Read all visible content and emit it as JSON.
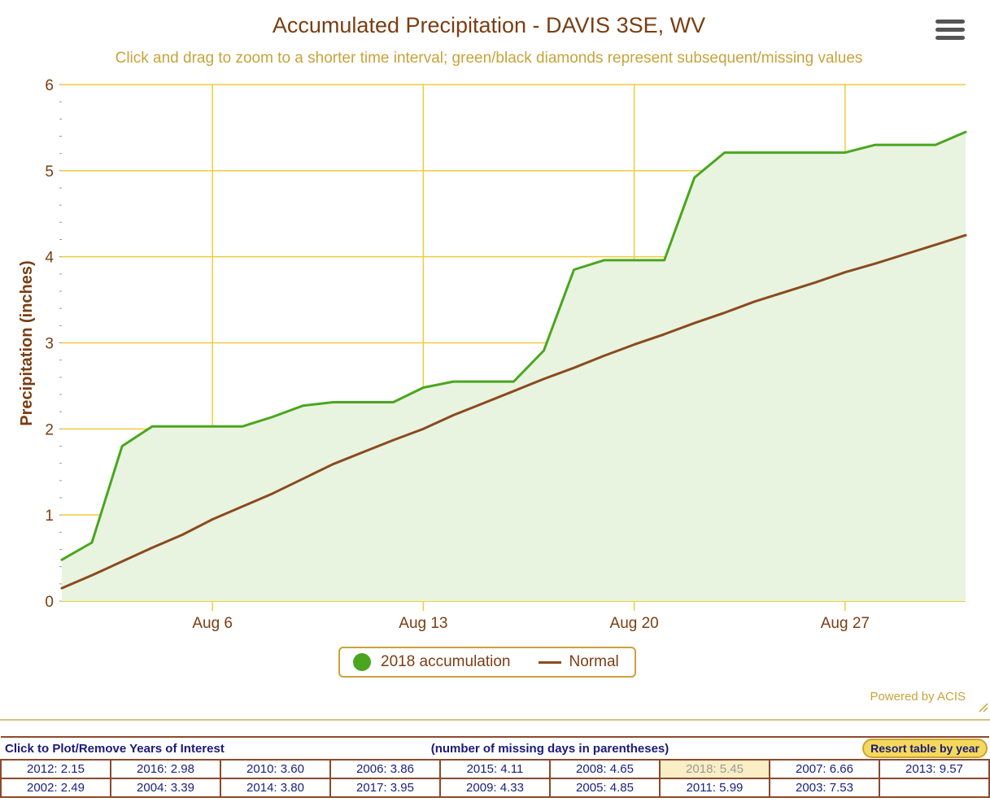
{
  "chart_data": {
    "type": "line",
    "title": "Accumulated Precipitation - DAVIS 3SE, WV",
    "subtitle": "Click and drag to zoom to a shorter time interval; green/black diamonds represent subsequent/missing values",
    "ylabel": "Precipitation (inches)",
    "ylim": [
      0,
      6
    ],
    "yticks": [
      "0",
      "1",
      "2",
      "3",
      "4",
      "5",
      "6"
    ],
    "xlim": [
      "2018-08-01",
      "2018-08-31"
    ],
    "xticks": [
      {
        "date": "2018-08-06",
        "label": "Aug 6"
      },
      {
        "date": "2018-08-13",
        "label": "Aug 13"
      },
      {
        "date": "2018-08-20",
        "label": "Aug 20"
      },
      {
        "date": "2018-08-27",
        "label": "Aug 27"
      }
    ],
    "grid": true,
    "x": [
      "2018-08-01",
      "2018-08-02",
      "2018-08-03",
      "2018-08-04",
      "2018-08-05",
      "2018-08-06",
      "2018-08-07",
      "2018-08-08",
      "2018-08-09",
      "2018-08-10",
      "2018-08-11",
      "2018-08-12",
      "2018-08-13",
      "2018-08-14",
      "2018-08-15",
      "2018-08-16",
      "2018-08-17",
      "2018-08-18",
      "2018-08-19",
      "2018-08-20",
      "2018-08-21",
      "2018-08-22",
      "2018-08-23",
      "2018-08-24",
      "2018-08-25",
      "2018-08-26",
      "2018-08-27",
      "2018-08-28",
      "2018-08-29",
      "2018-08-30",
      "2018-08-31"
    ],
    "series": [
      {
        "name": "2018 accumulation",
        "color": "#4aa61e",
        "fill": "#e8f4e0",
        "values": [
          0.48,
          0.68,
          1.8,
          2.03,
          2.03,
          2.03,
          2.03,
          2.14,
          2.27,
          2.31,
          2.31,
          2.31,
          2.48,
          2.55,
          2.55,
          2.55,
          2.91,
          3.85,
          3.96,
          3.96,
          3.96,
          4.92,
          5.21,
          5.21,
          5.21,
          5.21,
          5.21,
          5.3,
          5.3,
          5.3,
          5.45
        ]
      },
      {
        "name": "Normal",
        "color": "#8b4a1e",
        "values": [
          0.15,
          0.3,
          0.46,
          0.62,
          0.77,
          0.95,
          1.1,
          1.25,
          1.42,
          1.59,
          1.73,
          1.87,
          2.0,
          2.16,
          2.3,
          2.44,
          2.58,
          2.71,
          2.85,
          2.98,
          3.1,
          3.23,
          3.35,
          3.48,
          3.59,
          3.7,
          3.82,
          3.92,
          4.03,
          4.14,
          4.25
        ]
      }
    ]
  },
  "credits": "Powered by ACIS",
  "years_header": {
    "left": "Click to Plot/Remove Years of Interest",
    "middle": "(number of missing days in parentheses)",
    "resort": "Resort table by year"
  },
  "years_rows": [
    [
      "2012: 2.15",
      "2016: 2.98",
      "2010: 3.60",
      "2006: 3.86",
      "2015: 4.11",
      "2008: 4.65",
      "2018: 5.45",
      "2007: 6.66",
      "2013: 9.57"
    ],
    [
      "2002: 2.49",
      "2004: 3.39",
      "2014: 3.80",
      "2017: 3.95",
      "2009: 4.33",
      "2005: 4.85",
      "2011: 5.99",
      "2003: 7.53",
      ""
    ]
  ],
  "colors": {
    "title": "#7a3e12",
    "subtitle": "#c8a33a",
    "grid": "#f0cc3a",
    "highlight_year": "#fbedc4"
  }
}
